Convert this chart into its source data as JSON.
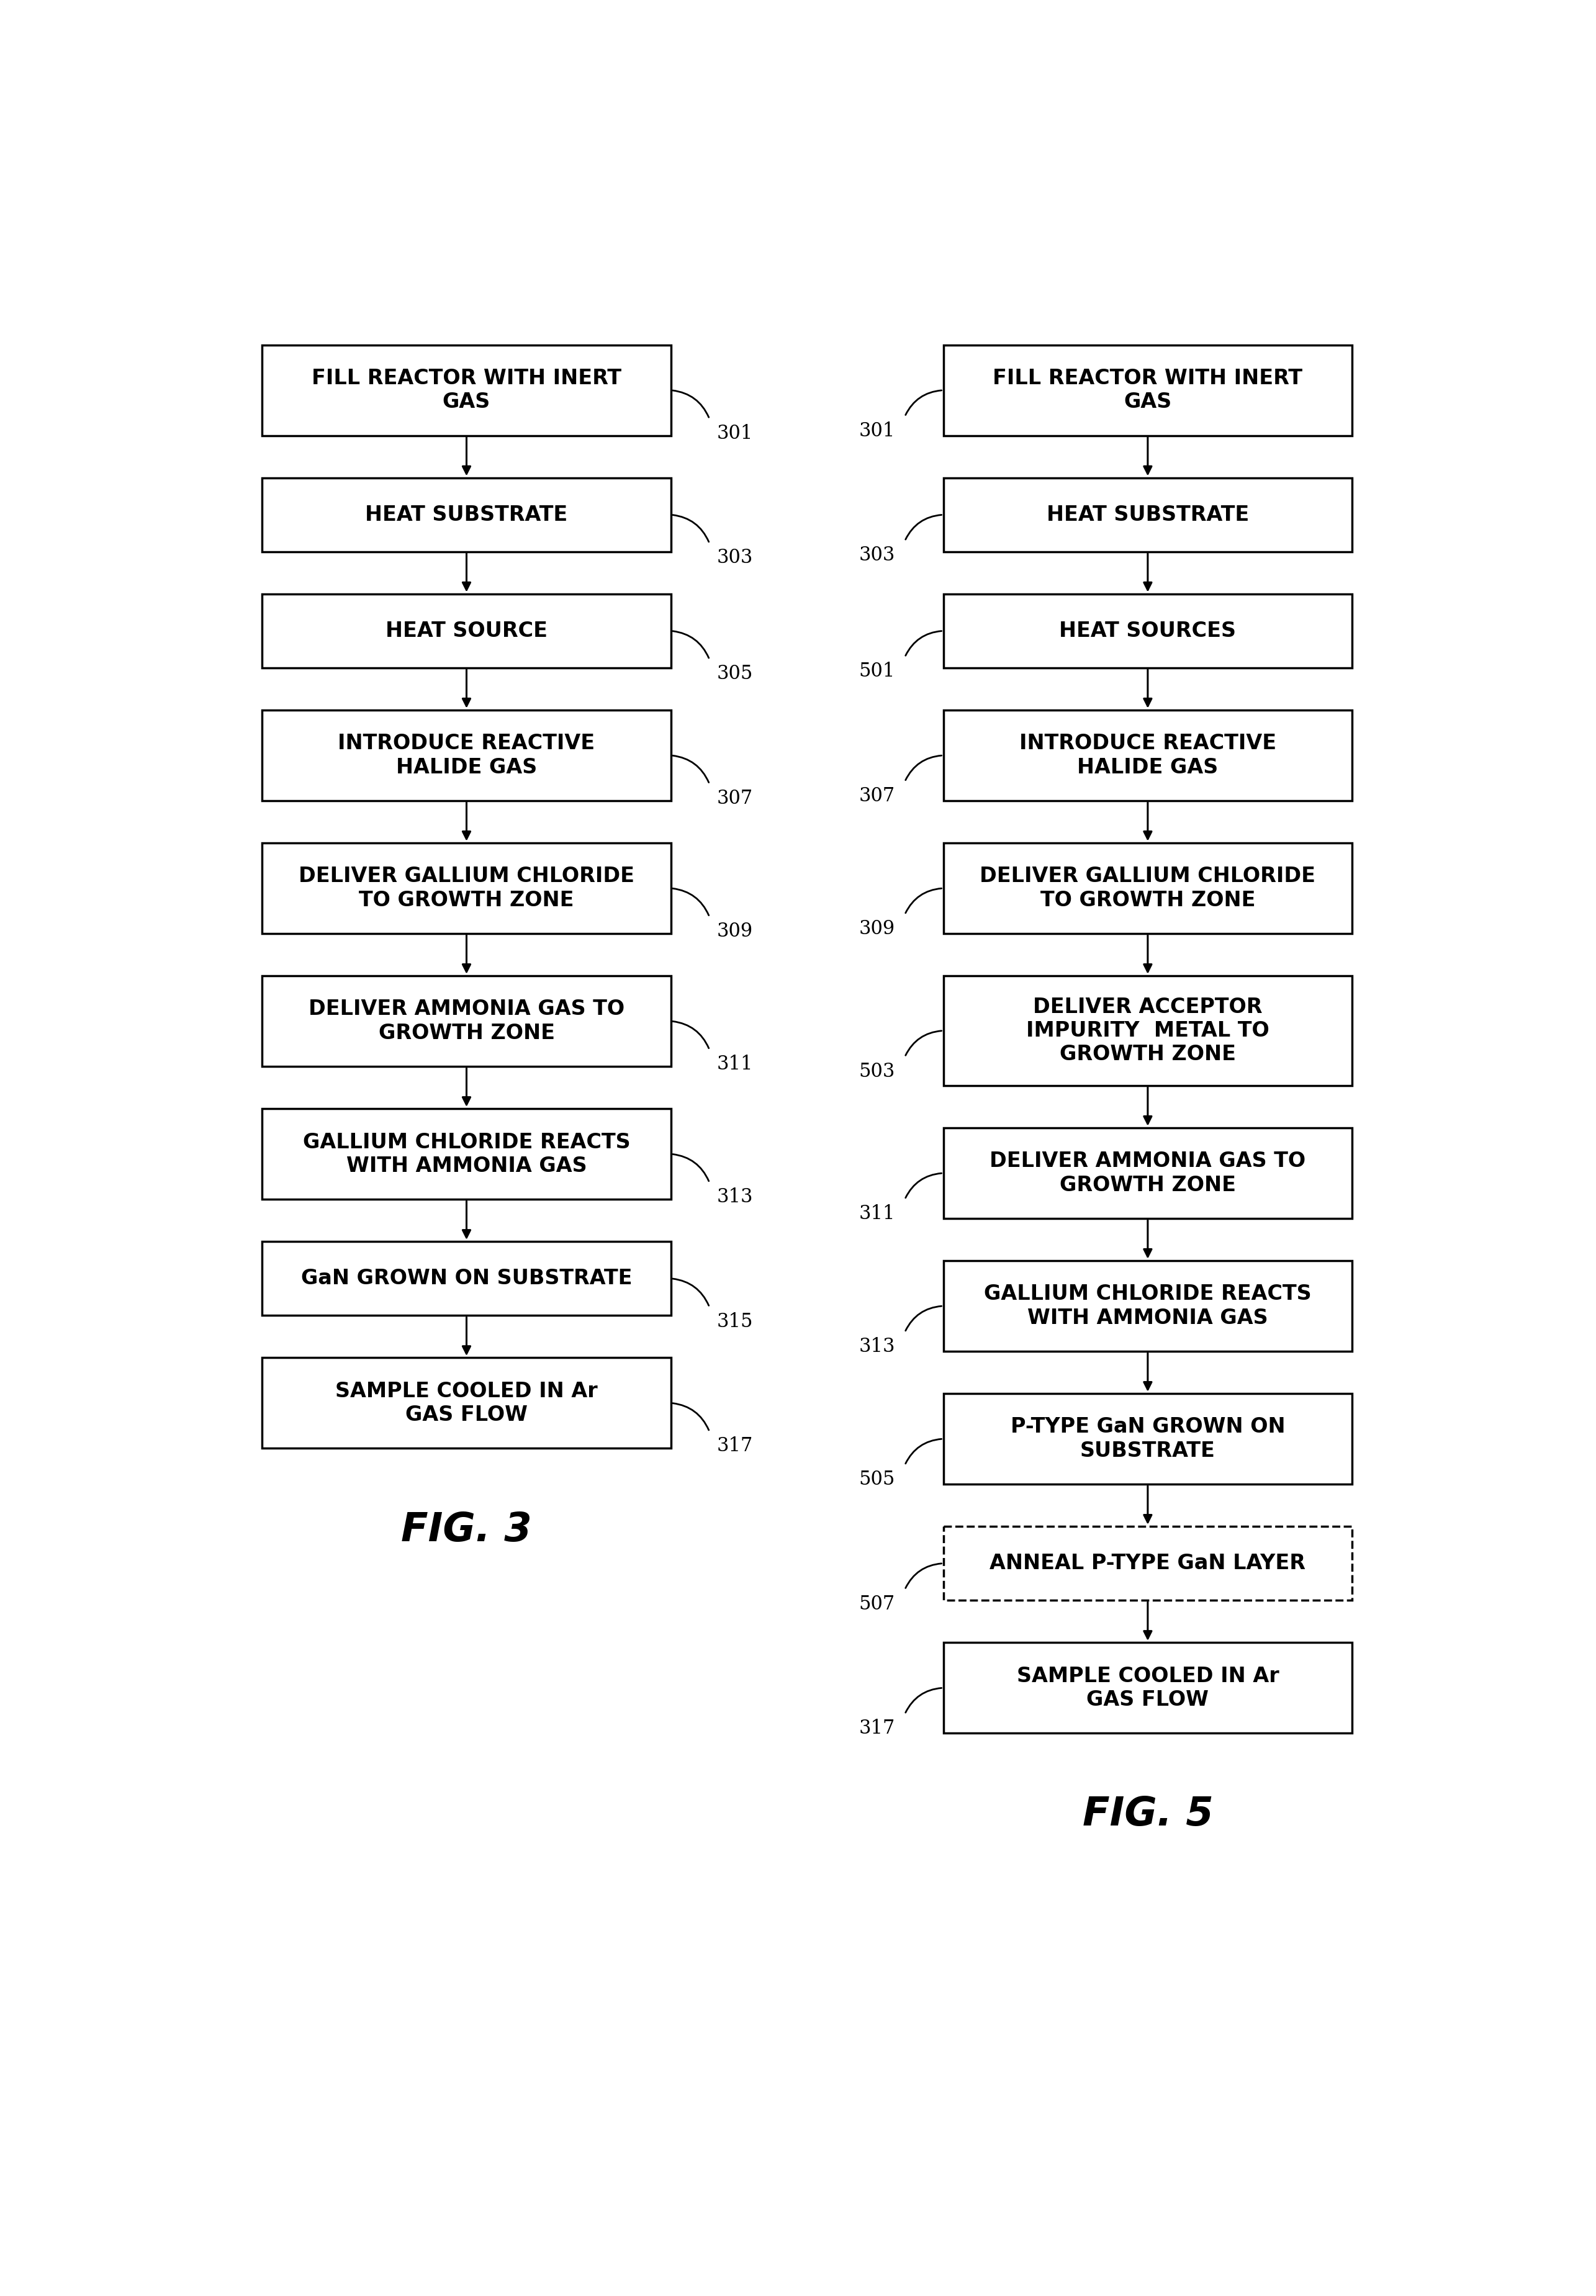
{
  "fig3_boxes": [
    {
      "label": "FILL REACTOR WITH INERT\nGAS",
      "ref": "301"
    },
    {
      "label": "HEAT SUBSTRATE",
      "ref": "303"
    },
    {
      "label": "HEAT SOURCE",
      "ref": "305"
    },
    {
      "label": "INTRODUCE REACTIVE\nHALIDE GAS",
      "ref": "307"
    },
    {
      "label": "DELIVER GALLIUM CHLORIDE\nTO GROWTH ZONE",
      "ref": "309"
    },
    {
      "label": "DELIVER AMMONIA GAS TO\nGROWTH ZONE",
      "ref": "311"
    },
    {
      "label": "GALLIUM CHLORIDE REACTS\nWITH AMMONIA GAS",
      "ref": "313"
    },
    {
      "label": "GaN GROWN ON SUBSTRATE",
      "ref": "315"
    },
    {
      "label": "SAMPLE COOLED IN Ar\nGAS FLOW",
      "ref": "317"
    }
  ],
  "fig5_boxes": [
    {
      "label": "FILL REACTOR WITH INERT\nGAS",
      "ref": "301"
    },
    {
      "label": "HEAT SUBSTRATE",
      "ref": "303"
    },
    {
      "label": "HEAT SOURCES",
      "ref": "501"
    },
    {
      "label": "INTRODUCE REACTIVE\nHALIDE GAS",
      "ref": "307"
    },
    {
      "label": "DELIVER GALLIUM CHLORIDE\nTO GROWTH ZONE",
      "ref": "309"
    },
    {
      "label": "DELIVER ACCEPTOR\nIMPURITY  METAL TO\nGROWTH ZONE",
      "ref": "503"
    },
    {
      "label": "DELIVER AMMONIA GAS TO\nGROWTH ZONE",
      "ref": "311"
    },
    {
      "label": "GALLIUM CHLORIDE REACTS\nWITH AMMONIA GAS",
      "ref": "313"
    },
    {
      "label": "P-TYPE GaN GROWN ON\nSUBSTRATE",
      "ref": "505"
    },
    {
      "label": "ANNEAL P-TYPE GaN LAYER",
      "ref": "507",
      "dashed": true
    },
    {
      "label": "SAMPLE COOLED IN Ar\nGAS FLOW",
      "ref": "317"
    }
  ],
  "fig3_title": "FIG. 3",
  "fig5_title": "FIG. 5",
  "background_color": "#ffffff",
  "box_facecolor": "#ffffff",
  "box_edgecolor": "#000000",
  "text_color": "#000000"
}
